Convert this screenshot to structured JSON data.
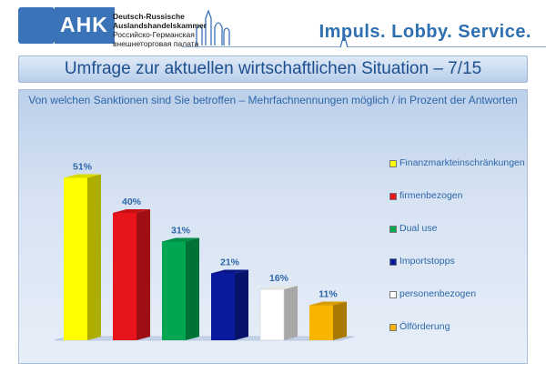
{
  "header": {
    "logo_text": "AHK",
    "org_lines": [
      "Deutsch-Russische",
      "Auslandshandelskammer",
      "Российско-Германская",
      "внешнеторговая палата"
    ],
    "motto": "Impuls. Lobby. Service.",
    "brand_color": "#3a73b8"
  },
  "title": "Umfrage zur aktuellen wirtschaftlichen Situation – 7/15",
  "chart_data": {
    "type": "bar",
    "title": "Von welchen Sanktionen sind Sie betroffen – Mehrfachnennungen möglich / in Prozent der Antworten",
    "categories": [
      "Finanzmarkteinschränkungen",
      "firmenbezogen",
      "Dual use",
      "Importstopps",
      "personenbezogen",
      "Ölförderung"
    ],
    "values": [
      51,
      40,
      31,
      21,
      16,
      11
    ],
    "value_labels": [
      "51%",
      "40%",
      "31%",
      "21%",
      "16%",
      "11%"
    ],
    "colors": [
      "#ffff00",
      "#e8141b",
      "#00a651",
      "#0a1a9e",
      "#ffffff",
      "#f7b500"
    ],
    "ylim": [
      0,
      60
    ],
    "legend_position": "right",
    "grid": false
  }
}
